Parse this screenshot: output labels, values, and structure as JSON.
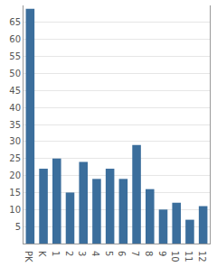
{
  "chart_data": {
    "type": "bar",
    "categories": [
      "PK",
      "K",
      "1",
      "2",
      "3",
      "4",
      "5",
      "6",
      "7",
      "8",
      "9",
      "10",
      "11",
      "12"
    ],
    "values": [
      69,
      22,
      25,
      15,
      24,
      19,
      22,
      19,
      29,
      16,
      10,
      12,
      7,
      11
    ],
    "color": "#3b6e9c",
    "ylim": [
      0,
      70
    ],
    "yticks": [
      5,
      10,
      15,
      20,
      25,
      30,
      35,
      40,
      45,
      50,
      55,
      60,
      65
    ],
    "grid": true
  }
}
